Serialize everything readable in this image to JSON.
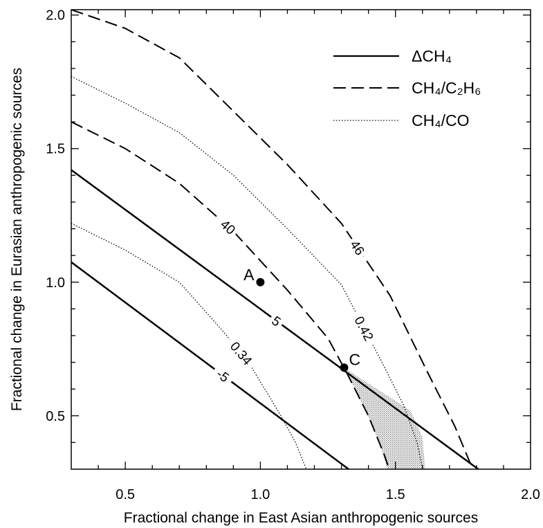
{
  "chart_data": {
    "type": "line",
    "title": "",
    "xlabel": "Fractional change in East Asian anthropogenic sources",
    "ylabel": "Fractional change in Eurasian anthropogenic sources",
    "xlim": [
      0.3,
      2.0
    ],
    "ylim": [
      0.3,
      2.02
    ],
    "x_ticks": [
      0.5,
      1.0,
      1.5,
      2.0
    ],
    "x_tick_labels": [
      "0.5",
      "1.0",
      "1.5",
      "2.0"
    ],
    "y_ticks": [
      0.5,
      1.0,
      1.5,
      2.0
    ],
    "y_tick_labels": [
      "0.5",
      "1.0",
      "1.5",
      "2.0"
    ],
    "grid": false,
    "legend_position": "top-right",
    "legend": [
      {
        "label": "ΔCH₄",
        "style": "solid"
      },
      {
        "label": "CH₄/C₂H₆",
        "style": "dashed"
      },
      {
        "label": "CH₄/CO",
        "style": "dotted"
      }
    ],
    "series": [
      {
        "group": "ΔCH₄",
        "label": "5",
        "style": "solid",
        "points": [
          [
            0.3,
            1.42
          ],
          [
            1.82,
            0.29
          ]
        ]
      },
      {
        "group": "ΔCH₄",
        "label": "-5",
        "style": "solid",
        "points": [
          [
            0.3,
            1.075
          ],
          [
            1.34,
            0.29
          ]
        ]
      },
      {
        "group": "CH₄/C₂H₆",
        "label": "46",
        "style": "dashed",
        "points": [
          [
            0.3,
            2.02
          ],
          [
            0.5,
            1.95
          ],
          [
            0.7,
            1.84
          ],
          [
            0.9,
            1.64
          ],
          [
            1.1,
            1.44
          ],
          [
            1.3,
            1.22
          ],
          [
            1.48,
            0.95
          ],
          [
            1.62,
            0.66
          ],
          [
            1.72,
            0.46
          ],
          [
            1.79,
            0.29
          ]
        ]
      },
      {
        "group": "CH₄/C₂H₆",
        "label": "40",
        "style": "dashed",
        "points": [
          [
            0.3,
            1.6
          ],
          [
            0.5,
            1.5
          ],
          [
            0.7,
            1.37
          ],
          [
            0.9,
            1.19
          ],
          [
            1.1,
            0.97
          ],
          [
            1.25,
            0.79
          ],
          [
            1.32,
            0.66
          ],
          [
            1.4,
            0.5
          ],
          [
            1.46,
            0.35
          ],
          [
            1.48,
            0.29
          ]
        ]
      },
      {
        "group": "CH₄/CO",
        "label": "0.42",
        "style": "dotted",
        "points": [
          [
            0.3,
            1.77
          ],
          [
            0.5,
            1.67
          ],
          [
            0.7,
            1.56
          ],
          [
            0.9,
            1.4
          ],
          [
            1.1,
            1.2
          ],
          [
            1.3,
            0.99
          ],
          [
            1.45,
            0.7
          ],
          [
            1.53,
            0.54
          ],
          [
            1.58,
            0.4
          ],
          [
            1.6,
            0.3
          ]
        ]
      },
      {
        "group": "CH₄/CO",
        "label": "0.34",
        "style": "dotted",
        "points": [
          [
            0.3,
            1.22
          ],
          [
            0.5,
            1.12
          ],
          [
            0.7,
            1.0
          ],
          [
            0.85,
            0.83
          ],
          [
            0.95,
            0.71
          ],
          [
            1.07,
            0.51
          ],
          [
            1.13,
            0.4
          ],
          [
            1.17,
            0.3
          ]
        ]
      }
    ],
    "points": [
      {
        "label": "A",
        "x": 1.0,
        "y": 1.0
      },
      {
        "label": "C",
        "x": 1.31,
        "y": 0.68
      }
    ],
    "shaded_region": [
      [
        1.31,
        0.68
      ],
      [
        1.44,
        0.595
      ],
      [
        1.555,
        0.52
      ],
      [
        1.6,
        0.42
      ],
      [
        1.61,
        0.3
      ],
      [
        1.47,
        0.3
      ],
      [
        1.44,
        0.4
      ],
      [
        1.39,
        0.52
      ]
    ]
  }
}
